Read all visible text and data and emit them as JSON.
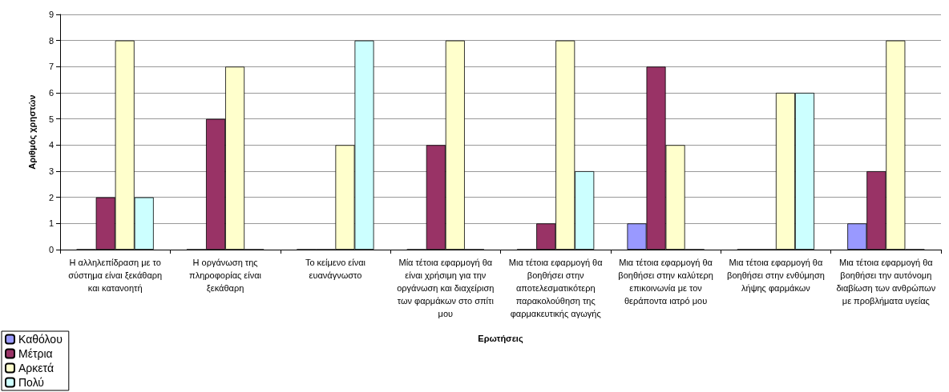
{
  "chart_data": {
    "type": "bar",
    "xlabel": "Ερωτήσεις",
    "ylabel": "Αριθμός χρηστών",
    "categories": [
      "Η αλληλεπίδραση με το σύστημα είναι ξεκάθαρη και κατανοητή",
      "Η οργάνωση της πληροφορίας είναι ξεκάθαρη",
      "Το κείμενο είναι ευανάγνωστο",
      "Μία τέτοια εφαρμογή θα είναι χρήσιμη για την οργάνωση και διαχείριση των φαρμάκων στο σπίτι μου",
      "Μια τέτοια εφαρμογή θα βοηθήσει στην αποτελεσματικότερη παρακολούθηση της φαρμακευτικής αγωγής",
      "Μια τέτοια εφαρμογή θα βοηθήσει στην καλύτερη επικοινωνία με τον θεράποντα ιατρό μου",
      "Μια τέτοια εφαρμογή θα βοηθήσει στην ενθύμηση λήψης φαρμάκων",
      "Μια τέτοια εφαρμογή θα βοηθήσει την αυτόνομη διαβίωση των ανθρώπων με προβλήματα υγείας"
    ],
    "series": [
      {
        "name": "Καθόλου",
        "color": "#9999ff",
        "values": [
          0,
          0,
          0,
          0,
          0,
          1,
          0,
          1
        ]
      },
      {
        "name": "Μέτρια",
        "color": "#993366",
        "values": [
          2,
          5,
          0,
          4,
          1,
          7,
          0,
          3
        ]
      },
      {
        "name": "Αρκετά",
        "color": "#ffffcc",
        "values": [
          8,
          7,
          4,
          8,
          8,
          4,
          6,
          8
        ]
      },
      {
        "name": "Πολύ",
        "color": "#ccffff",
        "values": [
          2,
          0,
          8,
          0,
          3,
          0,
          6,
          0
        ]
      }
    ],
    "ylim": [
      0,
      9
    ],
    "yticks": [
      0,
      1,
      2,
      3,
      4,
      5,
      6,
      7,
      8,
      9
    ],
    "grid": "y",
    "legend": "bottom left"
  }
}
